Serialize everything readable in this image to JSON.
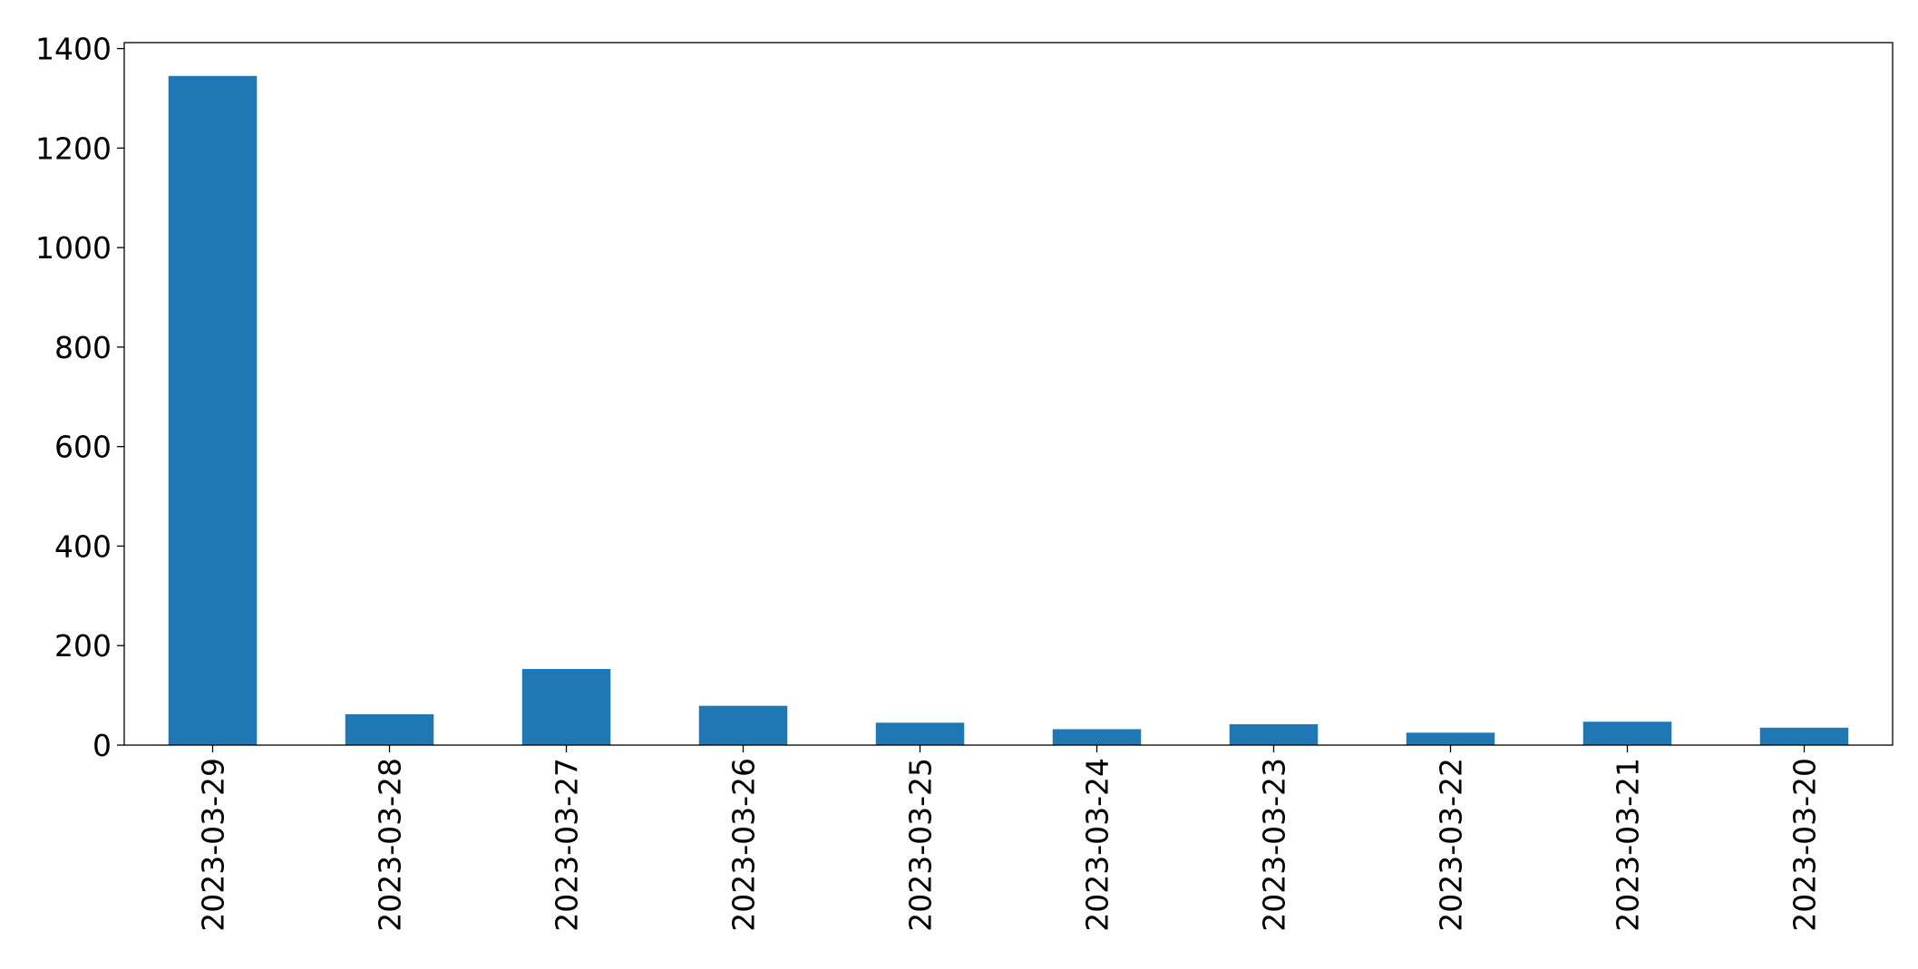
{
  "chart_data": {
    "type": "bar",
    "categories": [
      "2023-03-29",
      "2023-03-28",
      "2023-03-27",
      "2023-03-26",
      "2023-03-25",
      "2023-03-24",
      "2023-03-23",
      "2023-03-22",
      "2023-03-21",
      "2023-03-20"
    ],
    "values": [
      1345,
      62,
      153,
      79,
      45,
      32,
      42,
      25,
      47,
      35
    ],
    "color": "#1f77b4",
    "ylim": [
      0,
      1412
    ],
    "yticks": [
      0,
      200,
      400,
      600,
      800,
      1000,
      1200,
      1400
    ],
    "grid": false
  }
}
